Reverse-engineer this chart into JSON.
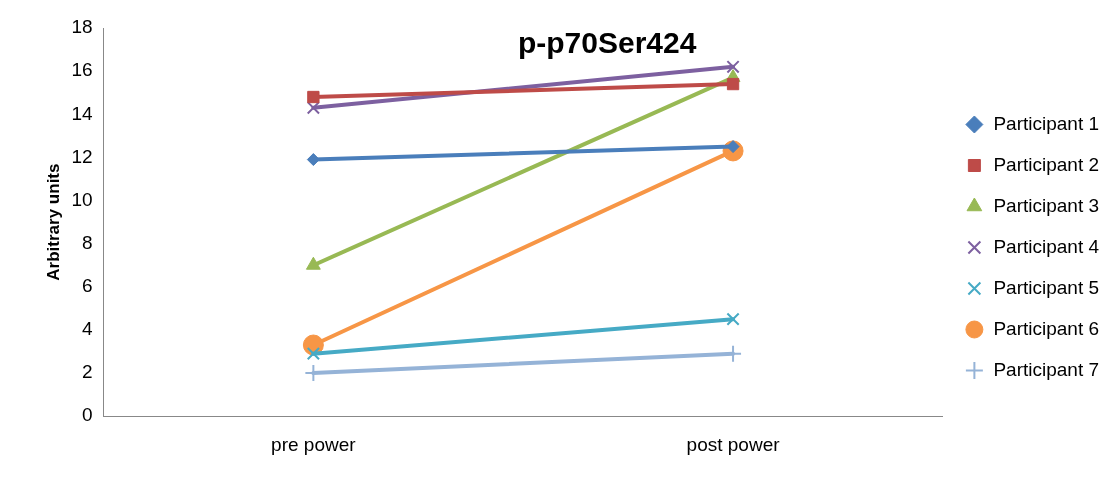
{
  "chart_data": {
    "type": "line",
    "title": "p-p70Ser424",
    "ylabel": "Arbitrary units",
    "categories": [
      "pre power",
      "post power"
    ],
    "ylim": [
      0,
      18
    ],
    "yticks": [
      0,
      2,
      4,
      6,
      8,
      10,
      12,
      14,
      16,
      18
    ],
    "grid": false,
    "legend": "right",
    "line_style": "solid",
    "series": [
      {
        "name": "Participant 1",
        "color": "#4a7ebb",
        "marker": "diamond",
        "values": [
          11.9,
          12.5
        ]
      },
      {
        "name": "Participant 2",
        "color": "#be4b48",
        "marker": "square",
        "values": [
          14.8,
          15.4
        ]
      },
      {
        "name": "Participant 3",
        "color": "#98b954",
        "marker": "triangle",
        "values": [
          7.0,
          15.7
        ]
      },
      {
        "name": "Participant 4",
        "color": "#7d60a0",
        "marker": "cross",
        "values": [
          14.3,
          16.2
        ]
      },
      {
        "name": "Participant 5",
        "color": "#46aac5",
        "marker": "cross",
        "values": [
          2.9,
          4.5
        ]
      },
      {
        "name": "Participant 6",
        "color": "#f79646",
        "marker": "circle",
        "values": [
          3.3,
          12.3
        ]
      },
      {
        "name": "Participant 7",
        "color": "#95b3d7",
        "marker": "plus",
        "values": [
          2.0,
          2.9
        ]
      }
    ]
  }
}
